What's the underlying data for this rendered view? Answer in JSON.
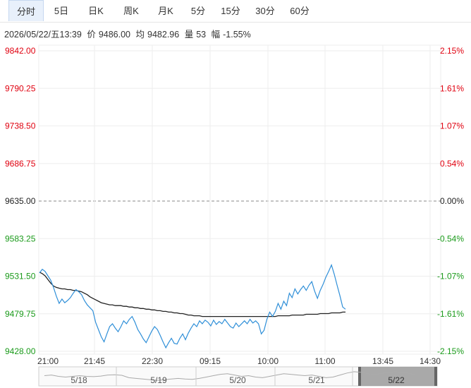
{
  "tabs": [
    {
      "label": "分时",
      "active": true
    },
    {
      "label": "5日"
    },
    {
      "label": "日K"
    },
    {
      "label": "周K"
    },
    {
      "label": "月K"
    },
    {
      "label": "5分"
    },
    {
      "label": "15分"
    },
    {
      "label": "30分"
    },
    {
      "label": "60分"
    }
  ],
  "info": {
    "datetime": "2026/05/22/五13:39",
    "price_label": "价",
    "price": "9486.00",
    "avg_label": "均",
    "avg": "9482.96",
    "volume_label": "量",
    "volume": "53",
    "change_label": "幅",
    "change": "-1.55%"
  },
  "colors": {
    "up": "#e0000f",
    "down": "#1a9a1a",
    "neutral": "#222222",
    "price_line": "#2f8fd8",
    "avg_line": "#222222",
    "grid": "#eeeeee",
    "navigator_shade": "#9a9a9a"
  },
  "chart_data": {
    "type": "line",
    "base_price": 9635.0,
    "ylim": [
      9428.0,
      9842.0
    ],
    "y_ticks_left": [
      "9842.00",
      "9790.25",
      "9738.50",
      "9686.75",
      "9635.00",
      "9583.25",
      "9531.50",
      "9479.75",
      "9428.00"
    ],
    "y_ticks_right": [
      "2.15%",
      "1.61%",
      "1.07%",
      "0.54%",
      "0.00%",
      "-0.54%",
      "-1.07%",
      "-1.61%",
      "-2.15%"
    ],
    "x_ticks": [
      "21:00",
      "21:45",
      "22:30",
      "09:15",
      "10:00",
      "11:00",
      "13:45",
      "14:30"
    ],
    "navigator_days": [
      "5/18",
      "5/19",
      "5/20",
      "5/21",
      "5/22"
    ],
    "price": [
      9536,
      9541,
      9538,
      9532,
      9526,
      9516,
      9504,
      9494,
      9500,
      9495,
      9498,
      9502,
      9508,
      9513,
      9510,
      9506,
      9498,
      9492,
      9488,
      9484,
      9468,
      9458,
      9448,
      9441,
      9452,
      9462,
      9466,
      9460,
      9455,
      9462,
      9470,
      9466,
      9472,
      9476,
      9468,
      9458,
      9452,
      9445,
      9440,
      9448,
      9456,
      9462,
      9458,
      9450,
      9441,
      9433,
      9440,
      9446,
      9439,
      9438,
      9446,
      9452,
      9444,
      9453,
      9460,
      9466,
      9462,
      9470,
      9466,
      9471,
      9468,
      9463,
      9471,
      9465,
      9469,
      9466,
      9472,
      9467,
      9462,
      9460,
      9467,
      9462,
      9466,
      9470,
      9466,
      9472,
      9467,
      9470,
      9466,
      9452,
      9457,
      9472,
      9482,
      9476,
      9483,
      9494,
      9486,
      9497,
      9491,
      9508,
      9502,
      9514,
      9507,
      9513,
      9518,
      9512,
      9519,
      9524,
      9511,
      9501,
      9512,
      9520,
      9530,
      9538,
      9547,
      9534,
      9519,
      9505,
      9489,
      9486
    ],
    "avg": [
      9537,
      9535,
      9532,
      9527,
      9522,
      9518,
      9516,
      9515,
      9514,
      9514,
      9513,
      9513,
      9512,
      9512,
      9511,
      9510,
      9508,
      9506,
      9503,
      9501,
      9499,
      9497,
      9495,
      9494,
      9493,
      9492,
      9492,
      9491,
      9491,
      9491,
      9490,
      9490,
      9489,
      9489,
      9488,
      9488,
      9487,
      9487,
      9486,
      9486,
      9485,
      9485,
      9484,
      9484,
      9483,
      9483,
      9482,
      9482,
      9481,
      9481,
      9480,
      9480,
      9479,
      9478,
      9478,
      9477,
      9477,
      9477,
      9476,
      9476,
      9476,
      9476,
      9476,
      9476,
      9476,
      9476,
      9476,
      9476,
      9476,
      9476,
      9476,
      9476,
      9476,
      9476,
      9476,
      9476,
      9476,
      9476,
      9476,
      9476,
      9476,
      9476,
      9476,
      9476,
      9476,
      9477,
      9477,
      9477,
      9477,
      9477,
      9478,
      9478,
      9478,
      9478,
      9478,
      9479,
      9479,
      9479,
      9479,
      9479,
      9480,
      9480,
      9480,
      9480,
      9481,
      9481,
      9481,
      9481,
      9482,
      9482
    ],
    "navigator_series": [
      0.55,
      0.6,
      0.5,
      0.45,
      0.5,
      0.55,
      0.5,
      0.48,
      0.52,
      0.6,
      0.62,
      0.58,
      0.4,
      0.35,
      0.3,
      0.25,
      0.2,
      0.25,
      0.3,
      0.35,
      0.3,
      0.28,
      0.35,
      0.45,
      0.55,
      0.65,
      0.7,
      0.6,
      0.5,
      0.55,
      0.45,
      0.4,
      0.5,
      0.6,
      0.7,
      0.65,
      0.6,
      0.55,
      0.6,
      0.5,
      0.4,
      0.45,
      0.6,
      0.75,
      0.85,
      0.8,
      0.7,
      0.65,
      0.72,
      0.8,
      0.86,
      0.78,
      0.7,
      0.6,
      0.62,
      0.58
    ]
  }
}
